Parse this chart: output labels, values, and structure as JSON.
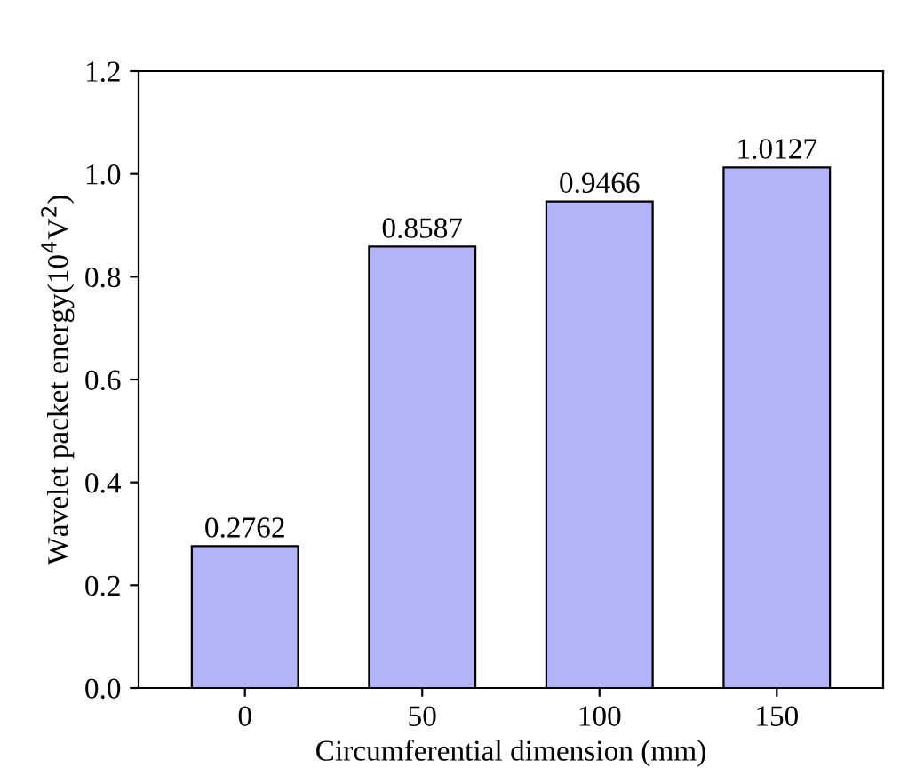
{
  "chart_data": {
    "type": "bar",
    "xlabel": "Circumferential dimension (mm)",
    "ylabel": "Wavelet packet energy(10$^{4}$V$^{2}$)",
    "categories": [
      "0",
      "50",
      "100",
      "150"
    ],
    "values": [
      0.2762,
      0.8587,
      0.9466,
      1.0127
    ],
    "color": "#b3b3f7",
    "ylim": [
      0,
      1.2
    ],
    "yticks": [
      {
        "value": 0,
        "label": "0.0"
      },
      0.2,
      0.4,
      0.6,
      0.8,
      {
        "value": 1,
        "label": "1.0"
      },
      1.2
    ],
    "data_labels": true,
    "grid": false
  }
}
